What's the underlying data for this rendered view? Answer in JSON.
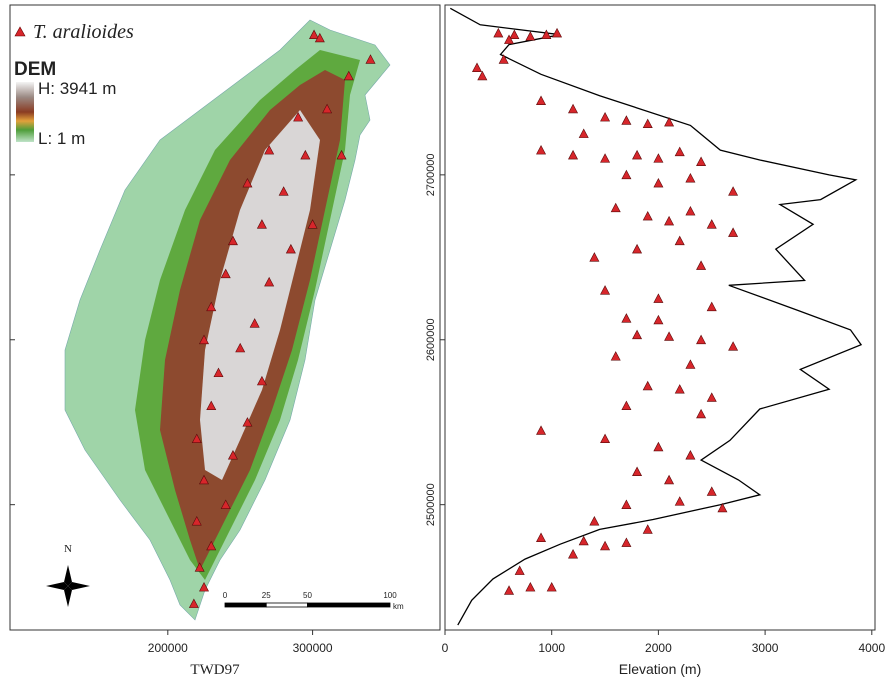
{
  "chart_data": [
    {
      "type": "map",
      "xlabel": "TWD97",
      "xlim": [
        91000,
        388000
      ],
      "xticks": [
        200000,
        300000
      ],
      "ylim": [
        2424000,
        2803000
      ],
      "dem_legend": {
        "title": "DEM",
        "high": "H: 3941 m",
        "low": "L: 1 m"
      },
      "scale_bar": {
        "ticks": [
          0,
          25,
          50,
          100
        ],
        "unit": "km"
      },
      "north": "N",
      "series": [
        {
          "name": "T. aralioides",
          "color": "#d7262b",
          "x": [
            301000,
            305000,
            340000,
            325000,
            310000,
            290000,
            270000,
            295000,
            320000,
            255000,
            280000,
            265000,
            300000,
            245000,
            285000,
            240000,
            270000,
            230000,
            260000,
            225000,
            250000,
            235000,
            265000,
            230000,
            255000,
            220000,
            245000,
            225000,
            240000,
            220000,
            230000,
            222000,
            225000,
            218000
          ],
          "y": [
            2785000,
            2783000,
            2770000,
            2760000,
            2740000,
            2735000,
            2715000,
            2712000,
            2712000,
            2695000,
            2690000,
            2670000,
            2670000,
            2660000,
            2655000,
            2640000,
            2635000,
            2620000,
            2610000,
            2600000,
            2595000,
            2580000,
            2575000,
            2560000,
            2550000,
            2540000,
            2530000,
            2515000,
            2500000,
            2490000,
            2475000,
            2462000,
            2450000,
            2440000
          ]
        }
      ]
    },
    {
      "type": "scatter",
      "xlabel": "Elevation (m)",
      "xlim": [
        0,
        4030
      ],
      "xticks": [
        0,
        1000,
        2000,
        3000,
        4000
      ],
      "ylim": [
        2424000,
        2803000
      ],
      "yticks": [
        2500000,
        2600000,
        2700000
      ],
      "series": [
        {
          "type": "line",
          "color": "#000000",
          "x": [
            50,
            330,
            1080,
            600,
            520,
            900,
            1450,
            2300,
            2580,
            2950,
            3600,
            3850,
            3520,
            3140,
            3450,
            3100,
            3370,
            2660,
            3300,
            3800,
            3900,
            3330,
            3600,
            2950,
            2670,
            2400,
            2750,
            2950,
            2580,
            1950,
            1450,
            1080,
            750,
            450,
            250,
            120
          ],
          "y": [
            2801000,
            2791000,
            2785000,
            2779000,
            2773000,
            2761000,
            2748000,
            2730000,
            2715000,
            2709000,
            2700000,
            2697000,
            2685000,
            2682000,
            2670000,
            2655000,
            2636000,
            2633000,
            2618000,
            2606000,
            2597000,
            2582000,
            2570000,
            2558000,
            2539000,
            2527000,
            2515000,
            2506000,
            2500000,
            2491000,
            2485000,
            2476000,
            2467000,
            2455000,
            2442000,
            2427000
          ]
        },
        {
          "type": "scatter",
          "color": "#d7262b",
          "x": [
            500,
            650,
            800,
            950,
            1050,
            600,
            300,
            350,
            550,
            900,
            1200,
            1500,
            1700,
            1900,
            2100,
            1300,
            900,
            1200,
            1500,
            1800,
            2000,
            2200,
            2400,
            1700,
            2000,
            2300,
            2700,
            1600,
            1900,
            2100,
            2300,
            2500,
            2700,
            2200,
            1800,
            1400,
            2400,
            1500,
            2000,
            2500,
            1700,
            2000,
            1800,
            2100,
            2400,
            2700,
            1600,
            2300,
            1900,
            2200,
            2500,
            1700,
            2400,
            900,
            1500,
            2000,
            2300,
            1800,
            2100,
            2500,
            1700,
            2200,
            2600,
            1400,
            1900,
            1300,
            1500,
            1700,
            1200,
            900,
            700,
            800,
            1000,
            600
          ],
          "y": [
            2786000,
            2785000,
            2784000,
            2785000,
            2786000,
            2782000,
            2765000,
            2760000,
            2770000,
            2745000,
            2740000,
            2735000,
            2733000,
            2731000,
            2732000,
            2725000,
            2715000,
            2712000,
            2710000,
            2712000,
            2710000,
            2714000,
            2708000,
            2700000,
            2695000,
            2698000,
            2690000,
            2680000,
            2675000,
            2672000,
            2678000,
            2670000,
            2665000,
            2660000,
            2655000,
            2650000,
            2645000,
            2630000,
            2625000,
            2620000,
            2613000,
            2612000,
            2603000,
            2602000,
            2600000,
            2596000,
            2590000,
            2585000,
            2572000,
            2570000,
            2565000,
            2560000,
            2555000,
            2545000,
            2540000,
            2535000,
            2530000,
            2520000,
            2515000,
            2508000,
            2500000,
            2502000,
            2498000,
            2490000,
            2485000,
            2478000,
            2475000,
            2477000,
            2470000,
            2480000,
            2460000,
            2450000,
            2450000,
            2448000
          ]
        }
      ]
    }
  ]
}
